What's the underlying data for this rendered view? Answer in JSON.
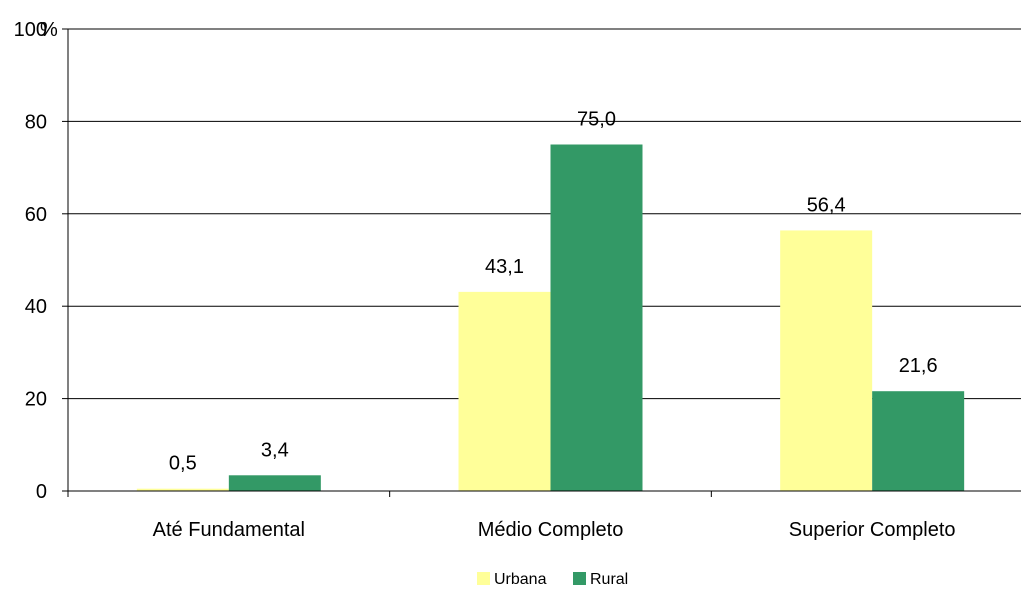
{
  "chart_data": {
    "type": "bar",
    "categories": [
      "Até Fundamental",
      "Médio Completo",
      "Superior Completo"
    ],
    "series": [
      {
        "name": "Urbana",
        "values": [
          0.5,
          43.1,
          56.4
        ],
        "labels": [
          "0,5",
          "43,1",
          "56,4"
        ],
        "color": "#FFFF99"
      },
      {
        "name": "Rural",
        "values": [
          3.4,
          75.0,
          21.6
        ],
        "labels": [
          "3,4",
          "75,0",
          "21,6"
        ],
        "color": "#339966"
      }
    ],
    "ylabel": "%",
    "ylim": [
      0,
      100
    ],
    "yticks": [
      0,
      20,
      40,
      60,
      80,
      100
    ],
    "ytick_labels": [
      "0",
      "20",
      "40",
      "60",
      "80",
      "100"
    ],
    "grid": true,
    "legend": "bottom-center"
  }
}
